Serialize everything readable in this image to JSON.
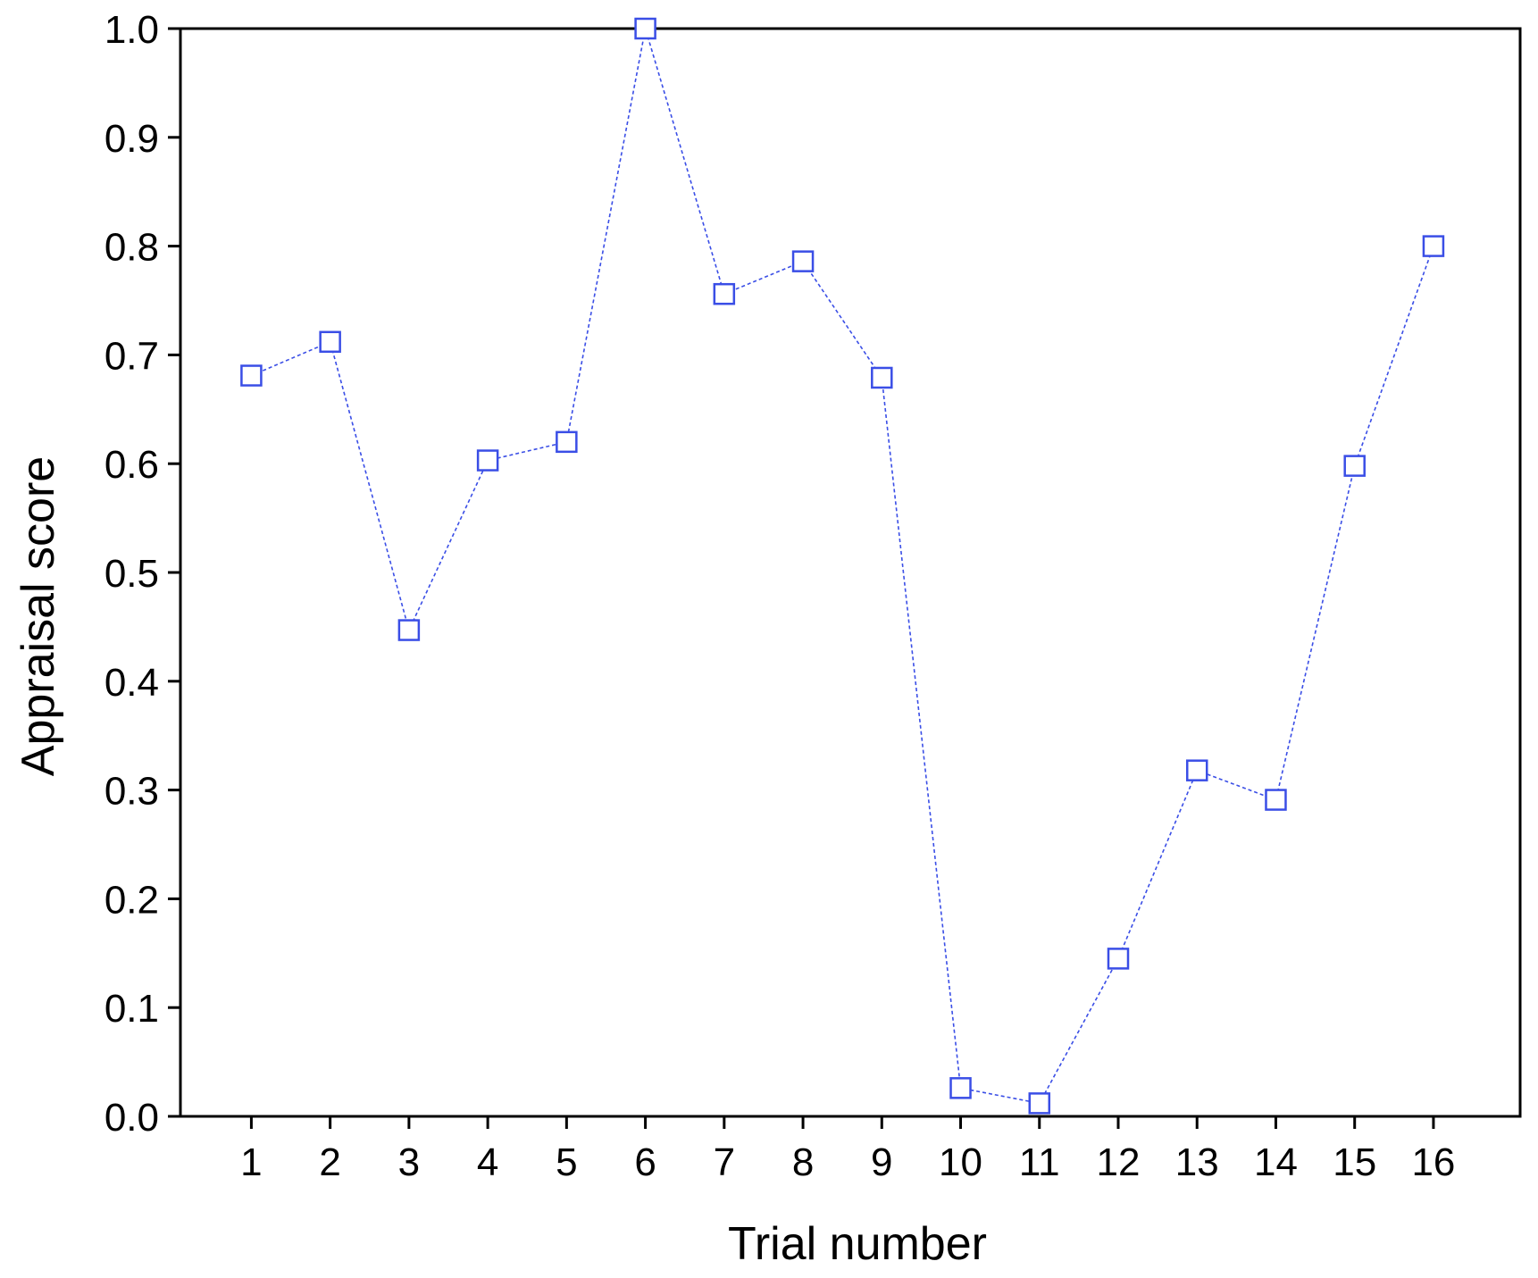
{
  "chart_data": {
    "type": "line",
    "title": "",
    "xlabel": "Trial number",
    "ylabel": "Appraisal score",
    "x": [
      1,
      2,
      3,
      4,
      5,
      6,
      7,
      8,
      9,
      10,
      11,
      12,
      13,
      14,
      15,
      16
    ],
    "x_tick_labels": [
      "1",
      "2",
      "3",
      "4",
      "5",
      "6",
      "7",
      "8",
      "9",
      "10",
      "11",
      "12",
      "13",
      "14",
      "15",
      "16"
    ],
    "xlim": [
      0.1,
      17.1
    ],
    "ylim": [
      0.0,
      1.0
    ],
    "y_ticks": [
      0.0,
      0.1,
      0.2,
      0.3,
      0.4,
      0.5,
      0.6,
      0.7,
      0.8,
      0.9,
      1.0
    ],
    "y_tick_labels": [
      "0.0",
      "0.1",
      "0.2",
      "0.3",
      "0.4",
      "0.5",
      "0.6",
      "0.7",
      "0.8",
      "0.9",
      "1.0"
    ],
    "grid": false,
    "series": [
      {
        "values": [
          0.681,
          0.712,
          0.447,
          0.603,
          0.62,
          1.0,
          0.756,
          0.786,
          0.679,
          0.026,
          0.012,
          0.145,
          0.318,
          0.291,
          0.598,
          0.8
        ],
        "color": "#3a4ee6",
        "marker": "open-square",
        "line_style": "dotted"
      }
    ]
  }
}
